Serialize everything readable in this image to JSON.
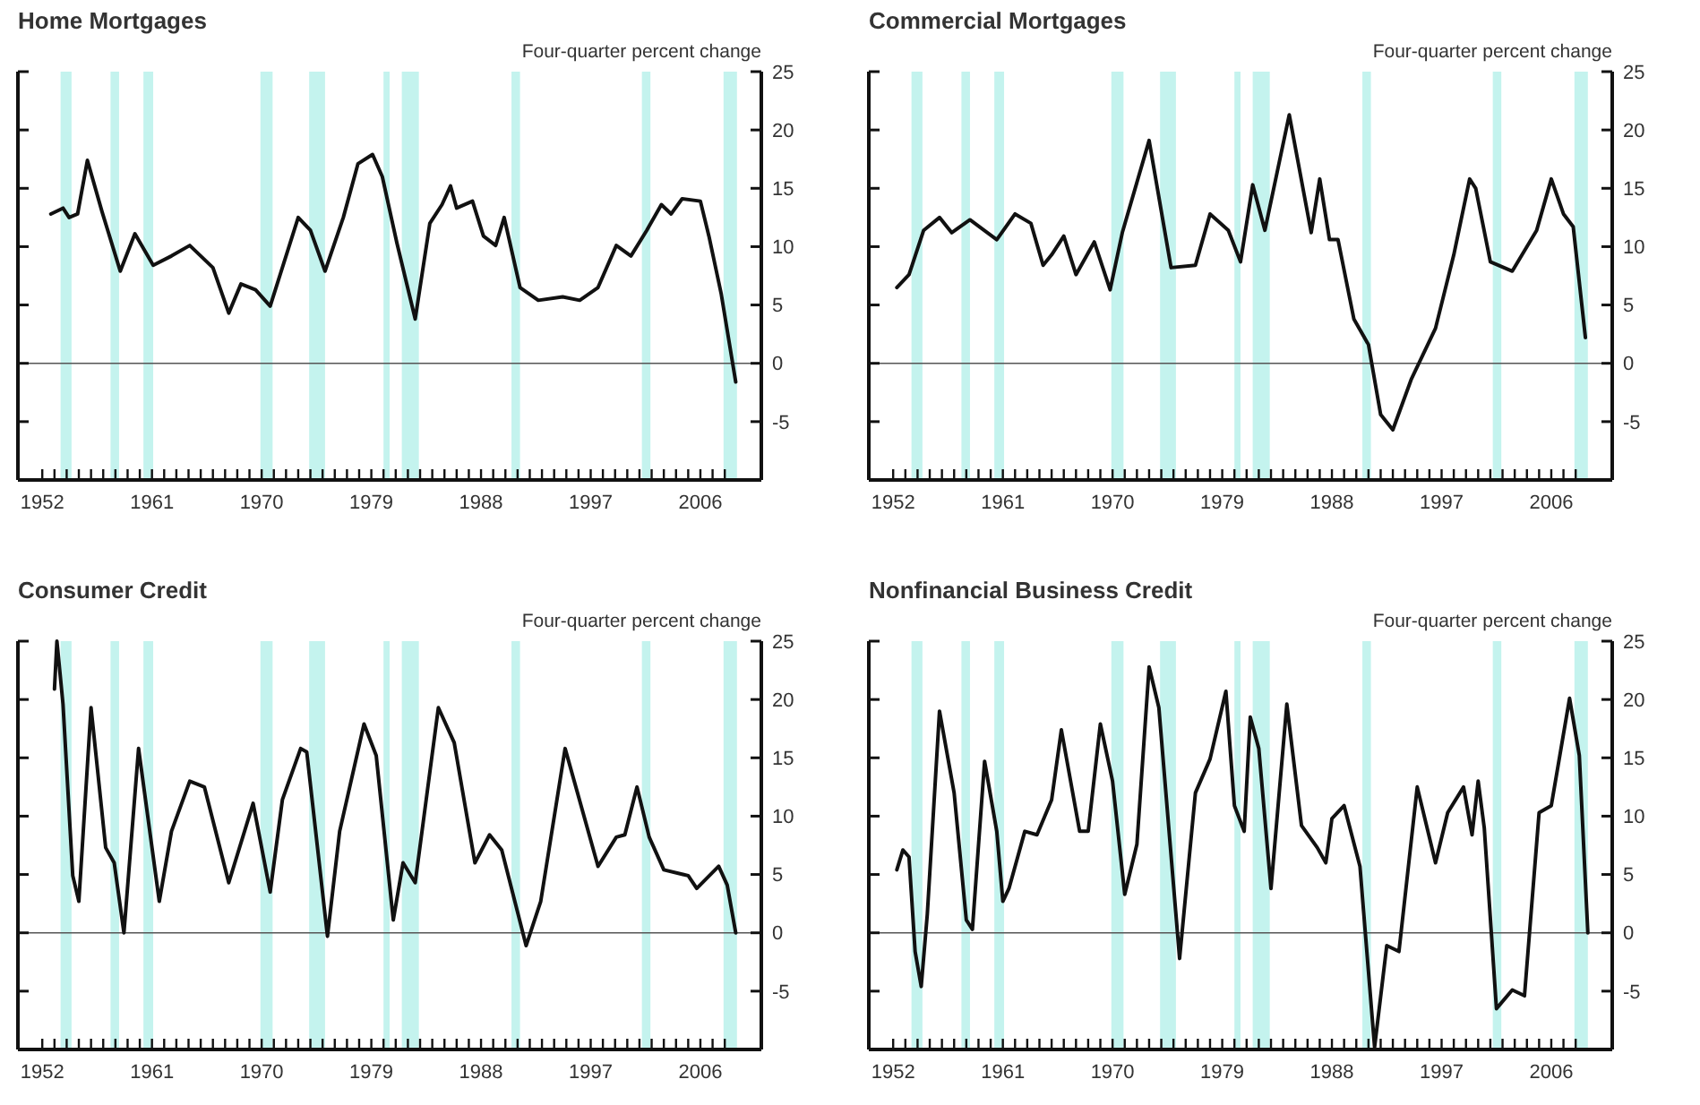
{
  "chart_data": [
    {
      "type": "line",
      "title": "Home Mortgages",
      "ylabel": "Four-quarter percent change",
      "xlim": [
        1950,
        2011
      ],
      "ylim": [
        -10,
        25
      ],
      "yticks": [
        -5,
        0,
        5,
        10,
        15,
        20,
        25
      ],
      "xticks": [
        1952,
        {
          "value": 1953,
          "label": null
        },
        {
          "value": 1954,
          "label": null
        },
        {
          "value": 1955,
          "label": null
        },
        {
          "value": 1956,
          "label": null
        },
        {
          "value": 1957,
          "label": null
        },
        {
          "value": 1958,
          "label": null
        },
        {
          "value": 1959,
          "label": null
        },
        {
          "value": 1960,
          "label": null
        },
        1961,
        {
          "value": 1962,
          "label": null
        },
        {
          "value": 1963,
          "label": null
        },
        {
          "value": 1964,
          "label": null
        },
        {
          "value": 1965,
          "label": null
        },
        {
          "value": 1966,
          "label": null
        },
        {
          "value": 1967,
          "label": null
        },
        {
          "value": 1968,
          "label": null
        },
        {
          "value": 1969,
          "label": null
        },
        1970,
        {
          "value": 1971,
          "label": null
        },
        {
          "value": 1972,
          "label": null
        },
        {
          "value": 1973,
          "label": null
        },
        {
          "value": 1974,
          "label": null
        },
        {
          "value": 1975,
          "label": null
        },
        {
          "value": 1976,
          "label": null
        },
        {
          "value": 1977,
          "label": null
        },
        {
          "value": 1978,
          "label": null
        },
        1979,
        {
          "value": 1980,
          "label": null
        },
        {
          "value": 1981,
          "label": null
        },
        {
          "value": 1982,
          "label": null
        },
        {
          "value": 1983,
          "label": null
        },
        {
          "value": 1984,
          "label": null
        },
        {
          "value": 1985,
          "label": null
        },
        {
          "value": 1986,
          "label": null
        },
        {
          "value": 1987,
          "label": null
        },
        1988,
        {
          "value": 1989,
          "label": null
        },
        {
          "value": 1990,
          "label": null
        },
        {
          "value": 1991,
          "label": null
        },
        {
          "value": 1992,
          "label": null
        },
        {
          "value": 1993,
          "label": null
        },
        {
          "value": 1994,
          "label": null
        },
        {
          "value": 1995,
          "label": null
        },
        {
          "value": 1996,
          "label": null
        },
        1997,
        {
          "value": 1998,
          "label": null
        },
        {
          "value": 1999,
          "label": null
        },
        {
          "value": 2000,
          "label": null
        },
        {
          "value": 2001,
          "label": null
        },
        {
          "value": 2002,
          "label": null
        },
        {
          "value": 2003,
          "label": null
        },
        {
          "value": 2004,
          "label": null
        },
        {
          "value": 2005,
          "label": null
        },
        2006,
        {
          "value": 2007,
          "label": null
        },
        {
          "value": 2008,
          "label": null
        }
      ],
      "ref_lines": [
        {
          "axis": "y",
          "value": 0,
          "color": "#555555"
        }
      ],
      "bands": [
        {
          "axis": "x",
          "from": 1953.5,
          "to": 1954.4,
          "color": "#c4f3ee"
        },
        {
          "axis": "x",
          "from": 1957.6,
          "to": 1958.3,
          "color": "#c4f3ee"
        },
        {
          "axis": "x",
          "from": 1960.3,
          "to": 1961.1,
          "color": "#c4f3ee"
        },
        {
          "axis": "x",
          "from": 1969.9,
          "to": 1970.9,
          "color": "#c4f3ee"
        },
        {
          "axis": "x",
          "from": 1973.9,
          "to": 1975.2,
          "color": "#c4f3ee"
        },
        {
          "axis": "x",
          "from": 1980.0,
          "to": 1980.5,
          "color": "#c4f3ee"
        },
        {
          "axis": "x",
          "from": 1981.5,
          "to": 1982.9,
          "color": "#c4f3ee"
        },
        {
          "axis": "x",
          "from": 1990.5,
          "to": 1991.2,
          "color": "#c4f3ee"
        },
        {
          "axis": "x",
          "from": 2001.2,
          "to": 2001.9,
          "color": "#c4f3ee"
        },
        {
          "axis": "x",
          "from": 2007.9,
          "to": 2009.0,
          "color": "#c4f3ee"
        }
      ],
      "series": [
        {
          "color": "#111111",
          "x": [
            1952.7,
            1953.7,
            1954.2,
            1954.9,
            1955.7,
            1956.9,
            1958.4,
            1959.6,
            1961.1,
            1962.6,
            1964.1,
            1966,
            1967.3,
            1968.3,
            1969.5,
            1970.7,
            1973,
            1974,
            1975.2,
            1976.7,
            1977.9,
            1979.1,
            1979.9,
            1981.1,
            1982.6,
            1983.8,
            1984.8,
            1985.5,
            1986,
            1987.3,
            1988.2,
            1989.2,
            1989.9,
            1991.2,
            1992.7,
            1994.7,
            1996.1,
            1997.6,
            1999.1,
            2000.3,
            2001.6,
            2002.8,
            2003.6,
            2004.5,
            2006,
            2006.7,
            2007.7,
            2008.9
          ],
          "values": [
            12.8,
            13.3,
            12.5,
            12.8,
            17.4,
            13,
            7.9,
            11.1,
            8.4,
            9.2,
            10.1,
            8.2,
            4.3,
            6.8,
            6.3,
            4.9,
            12.5,
            11.4,
            7.9,
            12.5,
            17.1,
            17.9,
            16,
            10.3,
            3.8,
            12,
            13.6,
            15.2,
            13.3,
            13.9,
            10.9,
            10.1,
            12.5,
            6.5,
            5.4,
            5.7,
            5.4,
            6.5,
            10.1,
            9.2,
            11.4,
            13.6,
            12.8,
            14.1,
            13.9,
            10.9,
            6,
            -1.6
          ]
        }
      ]
    },
    {
      "type": "line",
      "title": "Commercial Mortgages",
      "ylabel": "Four-quarter percent change",
      "xlim": [
        1950,
        2011
      ],
      "ylim": [
        -10,
        25
      ],
      "yticks": [
        -5,
        0,
        5,
        10,
        15,
        20,
        25
      ],
      "xticks": [
        1952,
        {
          "value": 1953,
          "label": null
        },
        {
          "value": 1954,
          "label": null
        },
        {
          "value": 1955,
          "label": null
        },
        {
          "value": 1956,
          "label": null
        },
        {
          "value": 1957,
          "label": null
        },
        {
          "value": 1958,
          "label": null
        },
        {
          "value": 1959,
          "label": null
        },
        {
          "value": 1960,
          "label": null
        },
        1961,
        {
          "value": 1962,
          "label": null
        },
        {
          "value": 1963,
          "label": null
        },
        {
          "value": 1964,
          "label": null
        },
        {
          "value": 1965,
          "label": null
        },
        {
          "value": 1966,
          "label": null
        },
        {
          "value": 1967,
          "label": null
        },
        {
          "value": 1968,
          "label": null
        },
        {
          "value": 1969,
          "label": null
        },
        1970,
        {
          "value": 1971,
          "label": null
        },
        {
          "value": 1972,
          "label": null
        },
        {
          "value": 1973,
          "label": null
        },
        {
          "value": 1974,
          "label": null
        },
        {
          "value": 1975,
          "label": null
        },
        {
          "value": 1976,
          "label": null
        },
        {
          "value": 1977,
          "label": null
        },
        {
          "value": 1978,
          "label": null
        },
        1979,
        {
          "value": 1980,
          "label": null
        },
        {
          "value": 1981,
          "label": null
        },
        {
          "value": 1982,
          "label": null
        },
        {
          "value": 1983,
          "label": null
        },
        {
          "value": 1984,
          "label": null
        },
        {
          "value": 1985,
          "label": null
        },
        {
          "value": 1986,
          "label": null
        },
        {
          "value": 1987,
          "label": null
        },
        1988,
        {
          "value": 1989,
          "label": null
        },
        {
          "value": 1990,
          "label": null
        },
        {
          "value": 1991,
          "label": null
        },
        {
          "value": 1992,
          "label": null
        },
        {
          "value": 1993,
          "label": null
        },
        {
          "value": 1994,
          "label": null
        },
        {
          "value": 1995,
          "label": null
        },
        {
          "value": 1996,
          "label": null
        },
        1997,
        {
          "value": 1998,
          "label": null
        },
        {
          "value": 1999,
          "label": null
        },
        {
          "value": 2000,
          "label": null
        },
        {
          "value": 2001,
          "label": null
        },
        {
          "value": 2002,
          "label": null
        },
        {
          "value": 2003,
          "label": null
        },
        {
          "value": 2004,
          "label": null
        },
        {
          "value": 2005,
          "label": null
        },
        2006,
        {
          "value": 2007,
          "label": null
        },
        {
          "value": 2008,
          "label": null
        }
      ],
      "ref_lines": [
        {
          "axis": "y",
          "value": 0,
          "color": "#555555"
        }
      ],
      "bands": [
        {
          "axis": "x",
          "from": 1953.5,
          "to": 1954.4,
          "color": "#c4f3ee"
        },
        {
          "axis": "x",
          "from": 1957.6,
          "to": 1958.3,
          "color": "#c4f3ee"
        },
        {
          "axis": "x",
          "from": 1960.3,
          "to": 1961.1,
          "color": "#c4f3ee"
        },
        {
          "axis": "x",
          "from": 1969.9,
          "to": 1970.9,
          "color": "#c4f3ee"
        },
        {
          "axis": "x",
          "from": 1973.9,
          "to": 1975.2,
          "color": "#c4f3ee"
        },
        {
          "axis": "x",
          "from": 1980.0,
          "to": 1980.5,
          "color": "#c4f3ee"
        },
        {
          "axis": "x",
          "from": 1981.5,
          "to": 1982.9,
          "color": "#c4f3ee"
        },
        {
          "axis": "x",
          "from": 1990.5,
          "to": 1991.2,
          "color": "#c4f3ee"
        },
        {
          "axis": "x",
          "from": 2001.2,
          "to": 2001.9,
          "color": "#c4f3ee"
        },
        {
          "axis": "x",
          "from": 2007.9,
          "to": 2009.0,
          "color": "#c4f3ee"
        }
      ],
      "series": [
        {
          "color": "#111111",
          "x": [
            1952.3,
            1953.3,
            1954.5,
            1955.8,
            1956.8,
            1958.3,
            1960.5,
            1962,
            1963.3,
            1964.3,
            1965,
            1966,
            1967,
            1968.5,
            1969.8,
            1970.8,
            1973,
            1974.8,
            1976.8,
            1978,
            1979.5,
            1980.5,
            1981.5,
            1982.5,
            1984.5,
            1986.3,
            1987,
            1987.8,
            1988.5,
            1989.8,
            1991,
            1992,
            1993,
            1994.5,
            1996.5,
            1998,
            1999.3,
            1999.8,
            2001,
            2002.8,
            2004.8,
            2006,
            2007,
            2007.8,
            2008.8
          ],
          "values": [
            6.5,
            7.6,
            11.4,
            12.5,
            11.2,
            12.3,
            10.6,
            12.8,
            12,
            8.4,
            9.3,
            10.9,
            7.6,
            10.4,
            6.3,
            11.2,
            19.1,
            8.2,
            8.4,
            12.8,
            11.4,
            8.7,
            15.3,
            11.4,
            21.3,
            11.2,
            15.8,
            10.6,
            10.6,
            3.8,
            1.6,
            -4.4,
            -5.7,
            -1.4,
            3,
            9.3,
            15.8,
            15,
            8.7,
            7.9,
            11.4,
            15.8,
            12.8,
            11.7,
            2.2
          ]
        }
      ]
    },
    {
      "type": "line",
      "title": "Consumer Credit",
      "ylabel": "Four-quarter percent change",
      "xlim": [
        1950,
        2011
      ],
      "ylim": [
        -10,
        25
      ],
      "yticks": [
        -5,
        0,
        5,
        10,
        15,
        20,
        25
      ],
      "xticks": [
        1952,
        {
          "value": 1953,
          "label": null
        },
        {
          "value": 1954,
          "label": null
        },
        {
          "value": 1955,
          "label": null
        },
        {
          "value": 1956,
          "label": null
        },
        {
          "value": 1957,
          "label": null
        },
        {
          "value": 1958,
          "label": null
        },
        {
          "value": 1959,
          "label": null
        },
        {
          "value": 1960,
          "label": null
        },
        1961,
        {
          "value": 1962,
          "label": null
        },
        {
          "value": 1963,
          "label": null
        },
        {
          "value": 1964,
          "label": null
        },
        {
          "value": 1965,
          "label": null
        },
        {
          "value": 1966,
          "label": null
        },
        {
          "value": 1967,
          "label": null
        },
        {
          "value": 1968,
          "label": null
        },
        {
          "value": 1969,
          "label": null
        },
        1970,
        {
          "value": 1971,
          "label": null
        },
        {
          "value": 1972,
          "label": null
        },
        {
          "value": 1973,
          "label": null
        },
        {
          "value": 1974,
          "label": null
        },
        {
          "value": 1975,
          "label": null
        },
        {
          "value": 1976,
          "label": null
        },
        {
          "value": 1977,
          "label": null
        },
        {
          "value": 1978,
          "label": null
        },
        1979,
        {
          "value": 1980,
          "label": null
        },
        {
          "value": 1981,
          "label": null
        },
        {
          "value": 1982,
          "label": null
        },
        {
          "value": 1983,
          "label": null
        },
        {
          "value": 1984,
          "label": null
        },
        {
          "value": 1985,
          "label": null
        },
        {
          "value": 1986,
          "label": null
        },
        {
          "value": 1987,
          "label": null
        },
        1988,
        {
          "value": 1989,
          "label": null
        },
        {
          "value": 1990,
          "label": null
        },
        {
          "value": 1991,
          "label": null
        },
        {
          "value": 1992,
          "label": null
        },
        {
          "value": 1993,
          "label": null
        },
        {
          "value": 1994,
          "label": null
        },
        {
          "value": 1995,
          "label": null
        },
        {
          "value": 1996,
          "label": null
        },
        1997,
        {
          "value": 1998,
          "label": null
        },
        {
          "value": 1999,
          "label": null
        },
        {
          "value": 2000,
          "label": null
        },
        {
          "value": 2001,
          "label": null
        },
        {
          "value": 2002,
          "label": null
        },
        {
          "value": 2003,
          "label": null
        },
        {
          "value": 2004,
          "label": null
        },
        {
          "value": 2005,
          "label": null
        },
        2006,
        {
          "value": 2007,
          "label": null
        },
        {
          "value": 2008,
          "label": null
        }
      ],
      "ref_lines": [
        {
          "axis": "y",
          "value": 0,
          "color": "#555555"
        }
      ],
      "bands": [
        {
          "axis": "x",
          "from": 1953.5,
          "to": 1954.4,
          "color": "#c4f3ee"
        },
        {
          "axis": "x",
          "from": 1957.6,
          "to": 1958.3,
          "color": "#c4f3ee"
        },
        {
          "axis": "x",
          "from": 1960.3,
          "to": 1961.1,
          "color": "#c4f3ee"
        },
        {
          "axis": "x",
          "from": 1969.9,
          "to": 1970.9,
          "color": "#c4f3ee"
        },
        {
          "axis": "x",
          "from": 1973.9,
          "to": 1975.2,
          "color": "#c4f3ee"
        },
        {
          "axis": "x",
          "from": 1980.0,
          "to": 1980.5,
          "color": "#c4f3ee"
        },
        {
          "axis": "x",
          "from": 1981.5,
          "to": 1982.9,
          "color": "#c4f3ee"
        },
        {
          "axis": "x",
          "from": 1990.5,
          "to": 1991.2,
          "color": "#c4f3ee"
        },
        {
          "axis": "x",
          "from": 2001.2,
          "to": 2001.9,
          "color": "#c4f3ee"
        },
        {
          "axis": "x",
          "from": 2007.9,
          "to": 2009.0,
          "color": "#c4f3ee"
        }
      ],
      "series": [
        {
          "color": "#111111",
          "x": [
            1953,
            1953.2,
            1953.7,
            1954.5,
            1955,
            1956,
            1957.2,
            1957.9,
            1958.7,
            1959.9,
            1961.6,
            1962.6,
            1964.1,
            1965.3,
            1967.3,
            1969.3,
            1970.7,
            1971.7,
            1973.2,
            1973.7,
            1975.4,
            1976.4,
            1978.4,
            1979.4,
            1980.8,
            1981.6,
            1982.6,
            1984.5,
            1985.8,
            1987.5,
            1988.7,
            1989.7,
            1991.7,
            1992.9,
            1994.9,
            1997.6,
            1999.1,
            1999.8,
            2000.8,
            2001.8,
            2003,
            2005,
            2005.7,
            2007.5,
            2008.2,
            2008.9
          ],
          "values": [
            20.9,
            25,
            19.6,
            4.9,
            2.7,
            19.3,
            7.3,
            6,
            0,
            15.8,
            2.7,
            8.7,
            13,
            12.5,
            4.3,
            11.1,
            3.5,
            11.4,
            15.8,
            15.5,
            -0.3,
            8.7,
            17.9,
            15.2,
            1.1,
            6,
            4.3,
            19.3,
            16.3,
            6,
            8.4,
            7.1,
            -1.1,
            2.7,
            15.8,
            5.7,
            8.2,
            8.4,
            12.5,
            8.2,
            5.4,
            4.9,
            3.8,
            5.7,
            4.1,
            0
          ]
        }
      ]
    },
    {
      "type": "line",
      "title": "Nonfinancial Business Credit",
      "ylabel": "Four-quarter percent change",
      "xlim": [
        1950,
        2011
      ],
      "ylim": [
        -10,
        25
      ],
      "yticks": [
        -5,
        0,
        5,
        10,
        15,
        20,
        25
      ],
      "xticks": [
        1952,
        {
          "value": 1953,
          "label": null
        },
        {
          "value": 1954,
          "label": null
        },
        {
          "value": 1955,
          "label": null
        },
        {
          "value": 1956,
          "label": null
        },
        {
          "value": 1957,
          "label": null
        },
        {
          "value": 1958,
          "label": null
        },
        {
          "value": 1959,
          "label": null
        },
        {
          "value": 1960,
          "label": null
        },
        1961,
        {
          "value": 1962,
          "label": null
        },
        {
          "value": 1963,
          "label": null
        },
        {
          "value": 1964,
          "label": null
        },
        {
          "value": 1965,
          "label": null
        },
        {
          "value": 1966,
          "label": null
        },
        {
          "value": 1967,
          "label": null
        },
        {
          "value": 1968,
          "label": null
        },
        {
          "value": 1969,
          "label": null
        },
        1970,
        {
          "value": 1971,
          "label": null
        },
        {
          "value": 1972,
          "label": null
        },
        {
          "value": 1973,
          "label": null
        },
        {
          "value": 1974,
          "label": null
        },
        {
          "value": 1975,
          "label": null
        },
        {
          "value": 1976,
          "label": null
        },
        {
          "value": 1977,
          "label": null
        },
        {
          "value": 1978,
          "label": null
        },
        1979,
        {
          "value": 1980,
          "label": null
        },
        {
          "value": 1981,
          "label": null
        },
        {
          "value": 1982,
          "label": null
        },
        {
          "value": 1983,
          "label": null
        },
        {
          "value": 1984,
          "label": null
        },
        {
          "value": 1985,
          "label": null
        },
        {
          "value": 1986,
          "label": null
        },
        {
          "value": 1987,
          "label": null
        },
        1988,
        {
          "value": 1989,
          "label": null
        },
        {
          "value": 1990,
          "label": null
        },
        {
          "value": 1991,
          "label": null
        },
        {
          "value": 1992,
          "label": null
        },
        {
          "value": 1993,
          "label": null
        },
        {
          "value": 1994,
          "label": null
        },
        {
          "value": 1995,
          "label": null
        },
        {
          "value": 1996,
          "label": null
        },
        1997,
        {
          "value": 1998,
          "label": null
        },
        {
          "value": 1999,
          "label": null
        },
        {
          "value": 2000,
          "label": null
        },
        {
          "value": 2001,
          "label": null
        },
        {
          "value": 2002,
          "label": null
        },
        {
          "value": 2003,
          "label": null
        },
        {
          "value": 2004,
          "label": null
        },
        {
          "value": 2005,
          "label": null
        },
        2006,
        {
          "value": 2007,
          "label": null
        },
        {
          "value": 2008,
          "label": null
        }
      ],
      "ref_lines": [
        {
          "axis": "y",
          "value": 0,
          "color": "#555555"
        }
      ],
      "bands": [
        {
          "axis": "x",
          "from": 1953.5,
          "to": 1954.4,
          "color": "#c4f3ee"
        },
        {
          "axis": "x",
          "from": 1957.6,
          "to": 1958.3,
          "color": "#c4f3ee"
        },
        {
          "axis": "x",
          "from": 1960.3,
          "to": 1961.1,
          "color": "#c4f3ee"
        },
        {
          "axis": "x",
          "from": 1969.9,
          "to": 1970.9,
          "color": "#c4f3ee"
        },
        {
          "axis": "x",
          "from": 1973.9,
          "to": 1975.2,
          "color": "#c4f3ee"
        },
        {
          "axis": "x",
          "from": 1980.0,
          "to": 1980.5,
          "color": "#c4f3ee"
        },
        {
          "axis": "x",
          "from": 1981.5,
          "to": 1982.9,
          "color": "#c4f3ee"
        },
        {
          "axis": "x",
          "from": 1990.5,
          "to": 1991.2,
          "color": "#c4f3ee"
        },
        {
          "axis": "x",
          "from": 2001.2,
          "to": 2001.9,
          "color": "#c4f3ee"
        },
        {
          "axis": "x",
          "from": 2007.9,
          "to": 2009.0,
          "color": "#c4f3ee"
        }
      ],
      "series": [
        {
          "color": "#111111",
          "x": [
            1952.3,
            1952.8,
            1953.3,
            1953.8,
            1954.3,
            1954.8,
            1955.8,
            1957,
            1958,
            1958.5,
            1959.5,
            1960.5,
            1961,
            1961.5,
            1962.8,
            1963.8,
            1965,
            1965.8,
            1967.3,
            1968,
            1969,
            1970,
            1971,
            1972,
            1973,
            1973.8,
            1975.5,
            1976.8,
            1978,
            1979.3,
            1980,
            1980.8,
            1981.3,
            1982,
            1983,
            1984.3,
            1985.5,
            1986.8,
            1987.5,
            1988,
            1989,
            1990.3,
            1991.5,
            1992.5,
            1993.5,
            1995,
            1996.5,
            1997.5,
            1998.8,
            1999.5,
            2000,
            2000.5,
            2001.5,
            2002.8,
            2003.8,
            2005,
            2006,
            2007.5,
            2008.3,
            2009
          ],
          "values": [
            5.4,
            7.1,
            6.5,
            -1.6,
            -4.6,
            1.6,
            19,
            12,
            1.1,
            0.3,
            14.7,
            8.7,
            2.7,
            3.8,
            8.7,
            8.4,
            11.4,
            17.4,
            8.7,
            8.7,
            17.9,
            13,
            3.3,
            7.6,
            22.8,
            19.3,
            -2.2,
            12,
            14.9,
            20.7,
            10.9,
            8.7,
            18.5,
            15.8,
            3.8,
            19.6,
            9.2,
            7.3,
            6,
            9.8,
            10.9,
            5.7,
            -9.8,
            -1.1,
            -1.6,
            12.5,
            6,
            10.3,
            12.5,
            8.4,
            13,
            9,
            -6.5,
            -4.9,
            -5.4,
            10.3,
            10.9,
            20.1,
            15.2,
            0
          ]
        }
      ]
    }
  ]
}
